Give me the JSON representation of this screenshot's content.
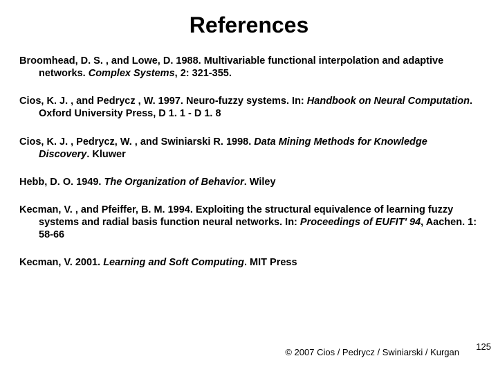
{
  "title": "References",
  "references": [
    {
      "pre": "Broomhead, D. S. , and Lowe, D. 1988. Multivariable functional interpolation and adaptive networks. ",
      "italic": "Complex Systems",
      "post": ", 2: 321-355."
    },
    {
      "pre": "Cios, K. J. , and Pedrycz , W. 1997. Neuro-fuzzy systems. In: ",
      "italic": "Handbook on Neural Computation",
      "post": ". Oxford University Press, D 1. 1 - D 1. 8"
    },
    {
      "pre": "Cios, K. J. , Pedrycz, W. , and Swiniarski R. 1998. ",
      "italic": "Data Mining Methods for Knowledge Discovery",
      "post": ". Kluwer"
    },
    {
      "pre": "Hebb, D. O. 1949. ",
      "italic": "The Organization of Behavior",
      "post": ". Wiley"
    },
    {
      "pre": "Kecman, V. , and Pfeiffer, B. M. 1994. Exploiting the structural equivalence of learning fuzzy systems and radial basis function neural networks. In: ",
      "italic": "Proceedings of EUFIT' 94",
      "post": ", Aachen. 1: 58-66"
    },
    {
      "pre": "Kecman, V. 2001. ",
      "italic": "Learning and Soft Computing",
      "post": ". MIT Press"
    }
  ],
  "footer": "© 2007 Cios / Pedrycz / Swiniarski / Kurgan",
  "page_number": "125"
}
